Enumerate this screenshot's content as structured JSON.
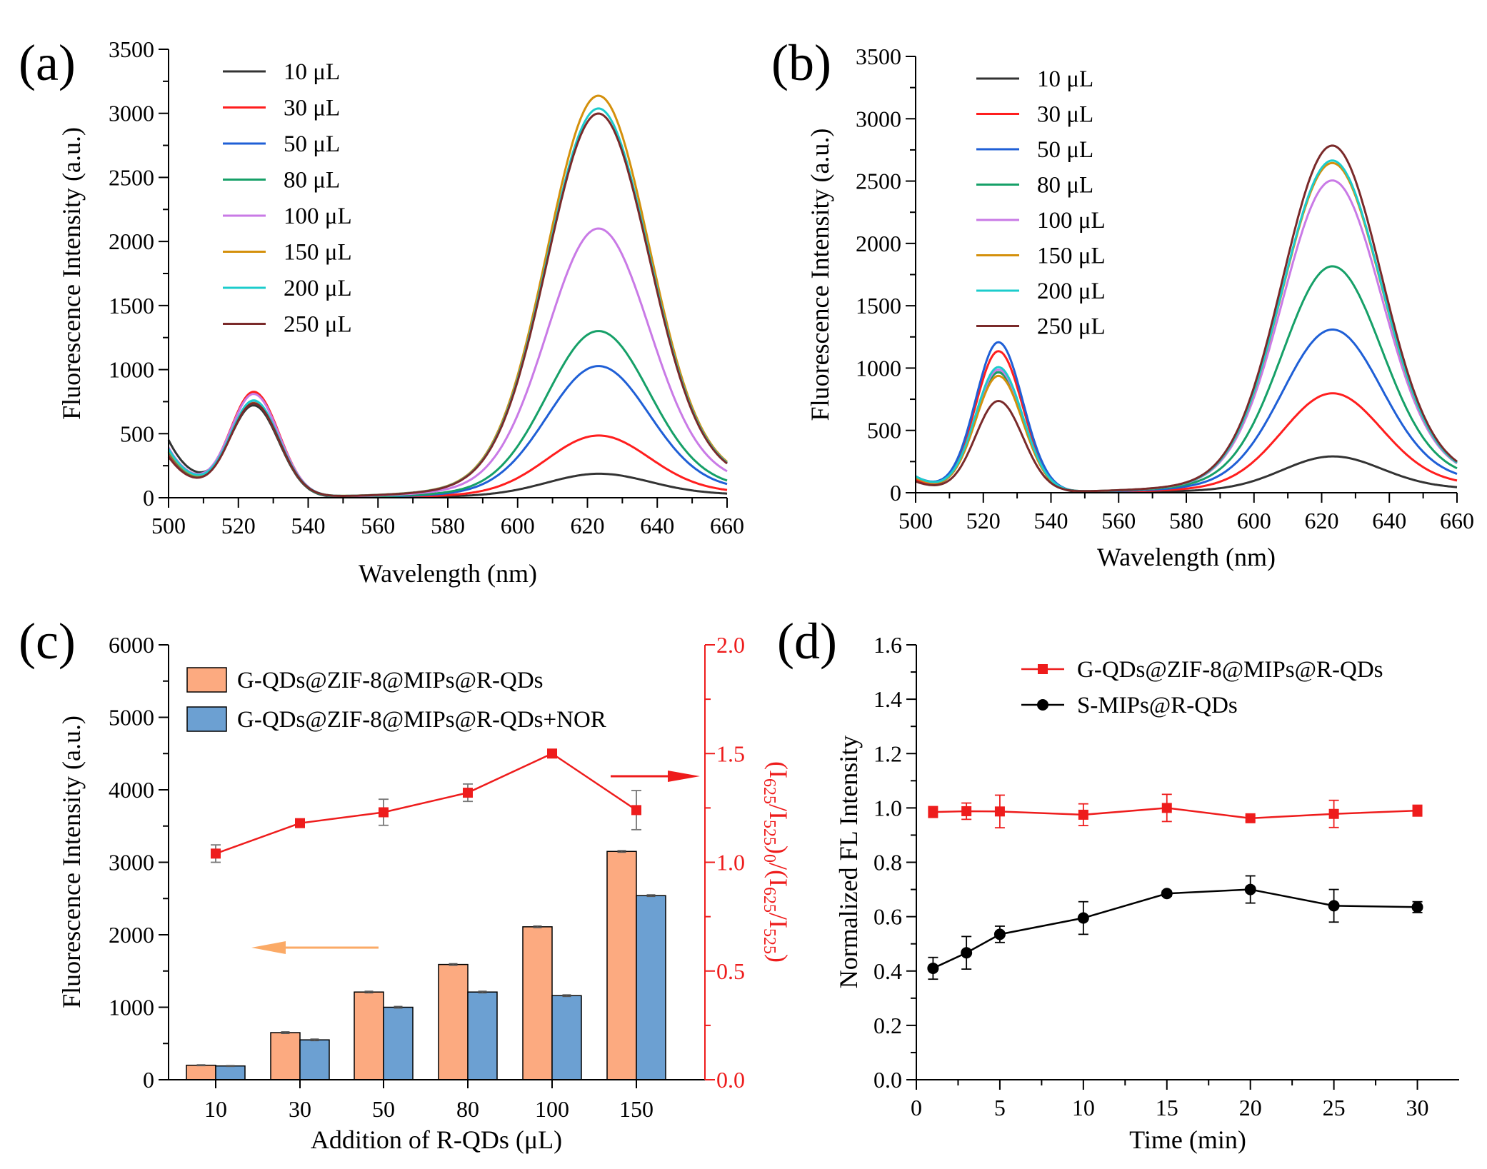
{
  "chart_data": [
    {
      "panel": "(a)",
      "type": "line",
      "xlabel": "Wavelength (nm)",
      "ylabel": "Fluorescence Intensity (a.u.)",
      "xlim": [
        500,
        660
      ],
      "ylim": [
        0,
        3500
      ],
      "xticks": [
        500,
        520,
        540,
        560,
        580,
        600,
        620,
        640,
        660
      ],
      "yticks": [
        0,
        500,
        1000,
        1500,
        2000,
        2500,
        3000,
        3500
      ],
      "legend_position": "top-left",
      "series": [
        {
          "name": "10 μL",
          "color": "#333333",
          "base": 450,
          "peak1": 700,
          "peak2": 190,
          "tail": 30
        },
        {
          "name": "30 μL",
          "color": "#ff1e1e",
          "base": 350,
          "peak1": 810,
          "peak2": 490,
          "tail": 50
        },
        {
          "name": "50 μL",
          "color": "#1f5fd6",
          "base": 360,
          "peak1": 740,
          "peak2": 1035,
          "tail": 80
        },
        {
          "name": "80 μL",
          "color": "#16a068",
          "base": 360,
          "peak1": 720,
          "peak2": 1310,
          "tail": 100
        },
        {
          "name": "100 μL",
          "color": "#c97ae6",
          "base": 390,
          "peak1": 790,
          "peak2": 2115,
          "tail": 150
        },
        {
          "name": "150 μL",
          "color": "#d4900c",
          "base": 370,
          "peak1": 720,
          "peak2": 3155,
          "tail": 190
        },
        {
          "name": "200 μL",
          "color": "#1ccccc",
          "base": 380,
          "peak1": 740,
          "peak2": 3055,
          "tail": 185
        },
        {
          "name": "250 μL",
          "color": "#7a2a2a",
          "base": 320,
          "peak1": 720,
          "peak2": 3015,
          "tail": 180
        }
      ]
    },
    {
      "panel": "(b)",
      "type": "line",
      "xlabel": "Wavelength (nm)",
      "ylabel": "Fluorescence Intensity (a.u.)",
      "xlim": [
        500,
        660
      ],
      "ylim": [
        0,
        3500
      ],
      "xticks": [
        500,
        520,
        540,
        560,
        580,
        600,
        620,
        640,
        660
      ],
      "yticks": [
        0,
        500,
        1000,
        1500,
        2000,
        2500,
        3000,
        3500
      ],
      "legend_position": "top-left",
      "series": [
        {
          "name": "10 μL",
          "color": "#333333",
          "base": 110,
          "peak1": 960,
          "peak2": 295,
          "tail": 40
        },
        {
          "name": "30 μL",
          "color": "#ff1e1e",
          "base": 100,
          "peak1": 1130,
          "peak2": 805,
          "tail": 80
        },
        {
          "name": "50 μL",
          "color": "#1f5fd6",
          "base": 130,
          "peak1": 1200,
          "peak2": 1320,
          "tail": 120
        },
        {
          "name": "80 μL",
          "color": "#16a068",
          "base": 120,
          "peak1": 960,
          "peak2": 1830,
          "tail": 150
        },
        {
          "name": "100 μL",
          "color": "#c97ae6",
          "base": 120,
          "peak1": 980,
          "peak2": 2520,
          "tail": 165
        },
        {
          "name": "150 μL",
          "color": "#d4900c",
          "base": 120,
          "peak1": 930,
          "peak2": 2660,
          "tail": 165
        },
        {
          "name": "200 μL",
          "color": "#1ccccc",
          "base": 130,
          "peak1": 1000,
          "peak2": 2680,
          "tail": 165
        },
        {
          "name": "250 μL",
          "color": "#7a2a2a",
          "base": 90,
          "peak1": 730,
          "peak2": 2800,
          "tail": 170
        }
      ]
    },
    {
      "panel": "(c)",
      "type": "bar",
      "xlabel": "Addition of R-QDs (μL)",
      "ylabel": "Fluorescence Intensity (a.u.)",
      "y2label_parts": [
        "(I",
        "625",
        "/I",
        "525",
        ")",
        "0",
        "/(I",
        "625",
        "/I",
        "525",
        ")"
      ],
      "categories": [
        "10",
        "30",
        "50",
        "80",
        "100",
        "150"
      ],
      "ylim": [
        0,
        6000
      ],
      "yticks": [
        0,
        1000,
        2000,
        3000,
        4000,
        5000,
        6000
      ],
      "y2lim": [
        0,
        2.0
      ],
      "y2ticks": [
        "0.0",
        "0.5",
        "1.0",
        "1.5",
        "2.0"
      ],
      "legend_position": "top-left",
      "series": [
        {
          "name": "G-QDs@ZIF-8@MIPs@R-QDs",
          "color": "#fcaa80",
          "values": [
            200,
            650,
            1210,
            1590,
            2110,
            3150
          ],
          "errors": [
            5,
            10,
            10,
            10,
            10,
            10
          ]
        },
        {
          "name": "G-QDs@ZIF-8@MIPs@R-QDs+NOR",
          "color": "#6ca0d2",
          "values": [
            190,
            550,
            1000,
            1210,
            1160,
            2540
          ],
          "errors": [
            5,
            10,
            10,
            10,
            10,
            10
          ]
        }
      ],
      "ratio_series": {
        "color": "#ee1c1c",
        "values": [
          1.04,
          1.18,
          1.23,
          1.32,
          1.5,
          1.24
        ],
        "errors": [
          0.04,
          0.01,
          0.06,
          0.04,
          0.01,
          0.09
        ]
      }
    },
    {
      "panel": "(d)",
      "type": "line",
      "xlabel": "Time (min)",
      "ylabel": "Normalized FL Intensity",
      "xlim": [
        0,
        32.5
      ],
      "ylim": [
        0,
        1.6
      ],
      "xticks": [
        0,
        5,
        10,
        15,
        20,
        25,
        30
      ],
      "yticks": [
        "0.0",
        "0.2",
        "0.4",
        "0.6",
        "0.8",
        "1.0",
        "1.2",
        "1.4",
        "1.6"
      ],
      "legend_position": "top-right",
      "x": [
        1,
        3,
        5,
        10,
        15,
        20,
        25,
        30
      ],
      "series": [
        {
          "name": "G-QDs@ZIF-8@MIPs@R-QDs",
          "color": "#ee1c1c",
          "marker": "square",
          "values": [
            0.985,
            0.988,
            0.987,
            0.975,
            1.0,
            0.962,
            0.978,
            0.99
          ],
          "errors": [
            0.02,
            0.03,
            0.06,
            0.04,
            0.05,
            0.01,
            0.05,
            0.02
          ]
        },
        {
          "name": "S-MIPs@R-QDs",
          "color": "#000000",
          "marker": "circle",
          "values": [
            0.41,
            0.467,
            0.535,
            0.595,
            0.685,
            0.7,
            0.64,
            0.635
          ],
          "errors": [
            0.04,
            0.06,
            0.03,
            0.06,
            0.01,
            0.05,
            0.06,
            0.02
          ]
        }
      ]
    }
  ]
}
